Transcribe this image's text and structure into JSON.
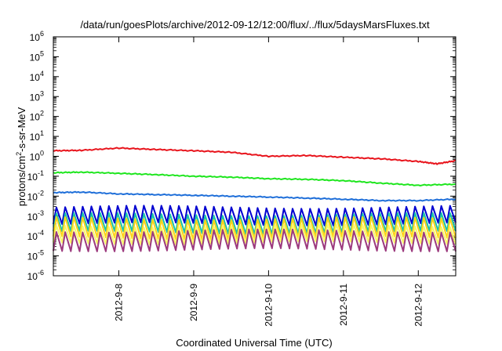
{
  "chart_data": {
    "type": "line",
    "title": "/data/run/goesPlots/archive/2012-09-12/12:00/flux/../flux/5daysMarsFluxes.txt",
    "xlabel": "Coordinated Universal Time (UTC)",
    "ylabel": "protons/cm²-s-sr-MeV",
    "ylabel_parts": {
      "pre": "protons/cm",
      "sup": "2",
      "post": "-s-sr-MeV"
    },
    "x_range": [
      "2012-09-07T03:00",
      "2012-09-12T12:00"
    ],
    "x_ticks": [
      "2012-9-8",
      "2012-9-9",
      "2012-9-10",
      "2012-9-11",
      "2012-9-12"
    ],
    "y_scale": "log",
    "ylim": [
      1e-06,
      1000000.0
    ],
    "y_ticks": [
      {
        "base": "10",
        "exp": "-6"
      },
      {
        "base": "10",
        "exp": "-5"
      },
      {
        "base": "10",
        "exp": "-4"
      },
      {
        "base": "10",
        "exp": "-3"
      },
      {
        "base": "10",
        "exp": "-2"
      },
      {
        "base": "10",
        "exp": "-1"
      },
      {
        "base": "10",
        "exp": "0"
      },
      {
        "base": "10",
        "exp": "1"
      },
      {
        "base": "10",
        "exp": "2"
      },
      {
        "base": "10",
        "exp": "3"
      },
      {
        "base": "10",
        "exp": "4"
      },
      {
        "base": "10",
        "exp": "5"
      },
      {
        "base": "10",
        "exp": "6"
      }
    ],
    "grid": false,
    "legend": "none",
    "series": [
      {
        "color": "#e8141c",
        "style": "smooth",
        "points": [
          [
            "2012-09-07T03:00",
            1.9
          ],
          [
            "2012-09-07T12:00",
            2.0
          ],
          [
            "2012-09-08T00:00",
            2.6
          ],
          [
            "2012-09-08T12:00",
            2.2
          ],
          [
            "2012-09-09T00:00",
            1.9
          ],
          [
            "2012-09-09T12:00",
            1.6
          ],
          [
            "2012-09-10T00:00",
            1.0
          ],
          [
            "2012-09-10T12:00",
            1.1
          ],
          [
            "2012-09-11T00:00",
            0.9
          ],
          [
            "2012-09-11T12:00",
            0.75
          ],
          [
            "2012-09-12T00:00",
            0.55
          ],
          [
            "2012-09-12T06:00",
            0.42
          ],
          [
            "2012-09-12T12:00",
            0.6
          ]
        ]
      },
      {
        "color": "#1ee61e",
        "style": "smooth",
        "points": [
          [
            "2012-09-07T03:00",
            0.15
          ],
          [
            "2012-09-07T12:00",
            0.16
          ],
          [
            "2012-09-08T00:00",
            0.14
          ],
          [
            "2012-09-08T12:00",
            0.12
          ],
          [
            "2012-09-09T00:00",
            0.1
          ],
          [
            "2012-09-09T12:00",
            0.09
          ],
          [
            "2012-09-10T00:00",
            0.075
          ],
          [
            "2012-09-10T12:00",
            0.07
          ],
          [
            "2012-09-11T00:00",
            0.06
          ],
          [
            "2012-09-11T12:00",
            0.045
          ],
          [
            "2012-09-12T00:00",
            0.035
          ],
          [
            "2012-09-12T12:00",
            0.04
          ]
        ]
      },
      {
        "color": "#1f6fd9",
        "style": "smooth",
        "points": [
          [
            "2012-09-07T03:00",
            0.015
          ],
          [
            "2012-09-07T12:00",
            0.016
          ],
          [
            "2012-09-08T00:00",
            0.013
          ],
          [
            "2012-09-08T12:00",
            0.012
          ],
          [
            "2012-09-09T00:00",
            0.011
          ],
          [
            "2012-09-09T12:00",
            0.01
          ],
          [
            "2012-09-10T00:00",
            0.009
          ],
          [
            "2012-09-10T12:00",
            0.008
          ],
          [
            "2012-09-11T00:00",
            0.007
          ],
          [
            "2012-09-11T12:00",
            0.006
          ],
          [
            "2012-09-12T00:00",
            0.006
          ],
          [
            "2012-09-12T12:00",
            0.007
          ]
        ]
      },
      {
        "color": "#0000d0",
        "style": "sawtooth",
        "peak": 0.0028,
        "trough": 0.0004
      },
      {
        "color": "#19c3a8",
        "style": "sawtooth",
        "peak": 0.0012,
        "trough": 0.00015
      },
      {
        "color": "#ffd21a",
        "style": "sawtooth",
        "peak": 0.00075,
        "trough": 8e-05
      },
      {
        "color": "#f8f868",
        "style": "sawtooth",
        "peak": 0.00032,
        "trough": 4.5e-05
      },
      {
        "color": "#9c3a7e",
        "style": "sawtooth",
        "peak": 0.00018,
        "trough": 2e-05
      }
    ],
    "sawtooth_periods": 46
  }
}
